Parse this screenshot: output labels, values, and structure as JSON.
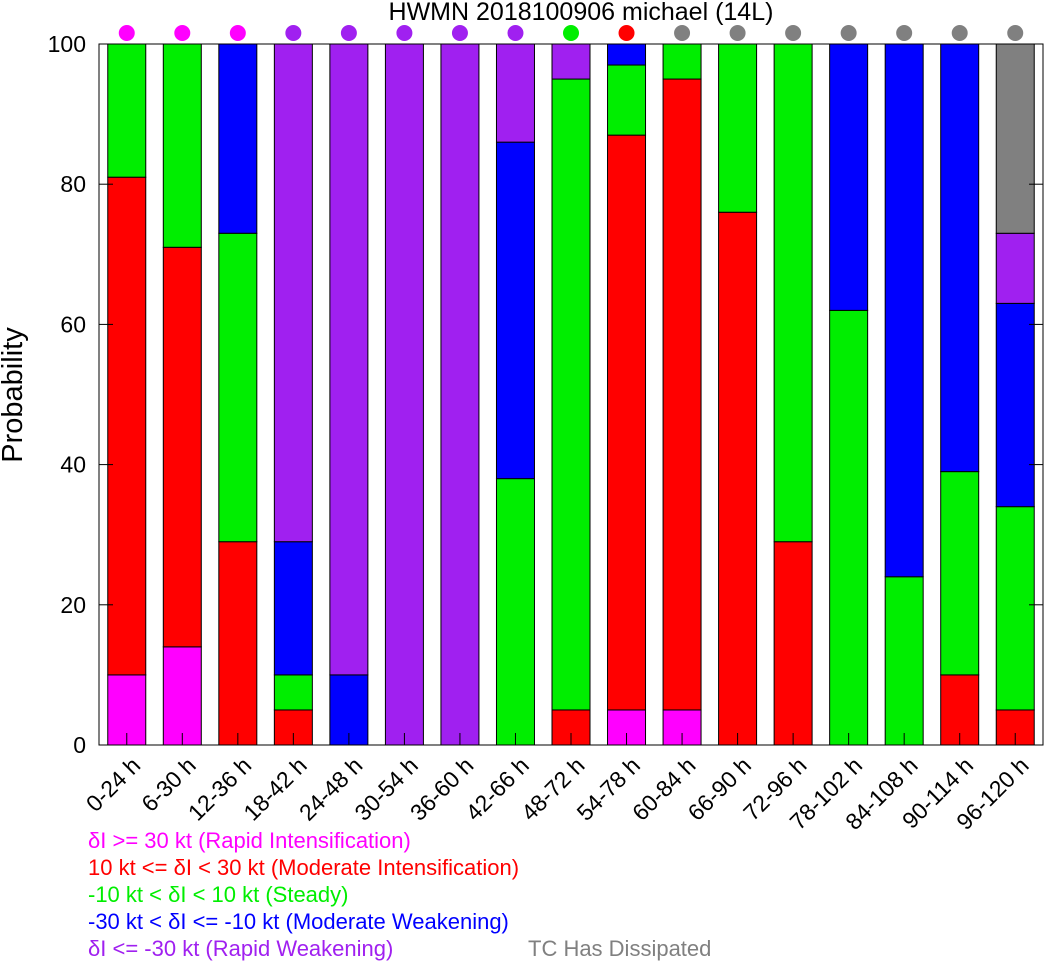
{
  "chart_data": {
    "type": "bar",
    "stacked": true,
    "title": "HWMN 2018100906 michael (14L)",
    "xlabel": "",
    "ylabel": "Probability",
    "ylim": [
      0,
      100
    ],
    "yticks": [
      "0",
      "20",
      "40",
      "60",
      "80",
      "100"
    ],
    "grid": false,
    "categories": [
      "0-24 h",
      "6-30 h",
      "12-36 h",
      "18-42 h",
      "24-48 h",
      "30-54 h",
      "36-60 h",
      "42-66 h",
      "48-72 h",
      "54-78 h",
      "60-84 h",
      "66-90 h",
      "72-96 h",
      "78-102 h",
      "84-108 h",
      "90-114 h",
      "96-120 h"
    ],
    "series": [
      {
        "key": "ri",
        "color": "#ff00ff",
        "values": [
          10,
          14,
          0,
          0,
          0,
          0,
          0,
          0,
          0,
          5,
          5,
          0,
          0,
          0,
          0,
          0,
          0
        ]
      },
      {
        "key": "mi",
        "color": "#ff0000",
        "values": [
          71,
          57,
          29,
          5,
          0,
          0,
          0,
          0,
          5,
          82,
          90,
          76,
          29,
          0,
          0,
          10,
          5
        ]
      },
      {
        "key": "st",
        "color": "#00ee00",
        "values": [
          19,
          29,
          44,
          5,
          0,
          0,
          0,
          38,
          90,
          10,
          5,
          24,
          71,
          62,
          24,
          29,
          29
        ]
      },
      {
        "key": "mw",
        "color": "#0000ff",
        "values": [
          0,
          0,
          27,
          19,
          10,
          0,
          0,
          48,
          0,
          3,
          0,
          0,
          0,
          38,
          76,
          61,
          29
        ]
      },
      {
        "key": "rw",
        "color": "#a020f0",
        "values": [
          0,
          0,
          0,
          71,
          90,
          100,
          100,
          14,
          5,
          0,
          0,
          0,
          0,
          0,
          0,
          0,
          10
        ]
      },
      {
        "key": "dis",
        "color": "#808080",
        "values": [
          0,
          0,
          0,
          0,
          0,
          0,
          0,
          0,
          0,
          0,
          0,
          0,
          0,
          0,
          0,
          0,
          27
        ]
      }
    ],
    "dots": [
      "#ff00ff",
      "#ff00ff",
      "#ff00ff",
      "#a020f0",
      "#a020f0",
      "#a020f0",
      "#a020f0",
      "#a020f0",
      "#00ee00",
      "#ff0000",
      "#808080",
      "#808080",
      "#808080",
      "#808080",
      "#808080",
      "#808080",
      "#808080"
    ]
  },
  "legend": {
    "ri": {
      "label": "δI >= 30 kt (Rapid Intensification)",
      "color": "#ff00ff"
    },
    "mi": {
      "label": "10 kt <= δI < 30 kt (Moderate Intensification)",
      "color": "#ff0000"
    },
    "st": {
      "label": "-10 kt < δI < 10 kt (Steady)",
      "color": "#00ee00"
    },
    "mw": {
      "label": "-30 kt < δI <= -10 kt (Moderate Weakening)",
      "color": "#0000ff"
    },
    "rw": {
      "label": "δI <= -30 kt (Rapid Weakening)",
      "color": "#a020f0"
    },
    "dis": {
      "label": "TC Has Dissipated",
      "color": "#808080"
    }
  }
}
